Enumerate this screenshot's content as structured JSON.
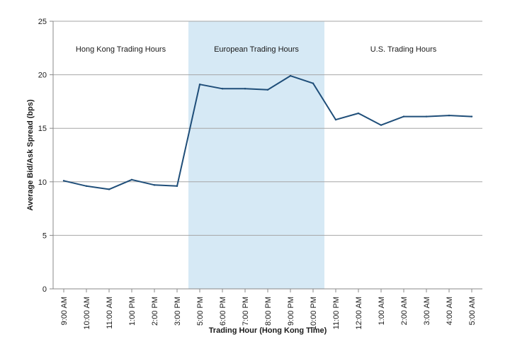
{
  "chart_data": {
    "type": "line",
    "title": "",
    "xlabel": "Trading Hour (Hong Kong Time)",
    "ylabel": "Average Bid/Ask Spread (bps)",
    "ylim": [
      0,
      25
    ],
    "yticks": [
      "0",
      "5",
      "10",
      "15",
      "20",
      "25"
    ],
    "grid": true,
    "categories": [
      "9:00 AM",
      "10:00 AM",
      "11:00 AM",
      "1:00 PM",
      "2:00 PM",
      "3:00 PM",
      "5:00 PM",
      "6:00 PM",
      "7:00 PM",
      "8:00 PM",
      "9:00 PM",
      "10:00 PM",
      "11:00 PM",
      "12:00 AM",
      "1:00 AM",
      "2:00 AM",
      "3:00 AM",
      "4:00 AM",
      "5:00 AM"
    ],
    "series": [
      {
        "values": [
          10.1,
          9.6,
          9.3,
          10.2,
          9.7,
          9.6,
          19.1,
          18.7,
          18.7,
          18.6,
          19.9,
          19.2,
          15.8,
          16.4,
          15.3,
          16.1,
          16.1,
          16.2,
          16.1
        ],
        "color": "#1f4e79"
      }
    ],
    "regions": [
      {
        "label": "Hong Kong Trading Hours",
        "from": "9:00 AM",
        "to": "3:00 PM",
        "shaded": false
      },
      {
        "label": "European Trading Hours",
        "from": "5:00 PM",
        "to": "10:00 PM",
        "shaded": true,
        "color": "#d6e9f5"
      },
      {
        "label": "U.S. Trading Hours",
        "from": "11:00 PM",
        "to": "5:00 AM",
        "shaded": false
      }
    ]
  }
}
